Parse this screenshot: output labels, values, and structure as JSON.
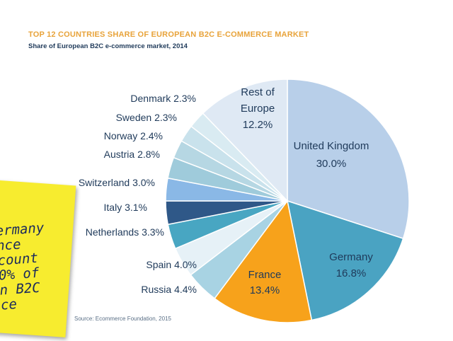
{
  "chart_data": {
    "type": "pie",
    "title": "TOP 12 COUNTRIES SHARE OF EUROPEAN B2C E-COMMERCE MARKET",
    "subtitle": "Share of European B2C e-commerce market, 2014",
    "source": "Source: Ecommerce Foundation, 2015",
    "slices": [
      {
        "label": "United Kingdom",
        "value": 30.0,
        "display": "30.0%",
        "color": "#b8cfe9"
      },
      {
        "label": "Germany",
        "value": 16.8,
        "display": "16.8%",
        "color": "#4aa3c2"
      },
      {
        "label": "France",
        "value": 13.4,
        "display": "13.4%",
        "color": "#f7a21b"
      },
      {
        "label": "Russia",
        "value": 4.4,
        "display": "4.4%",
        "color": "#a8d3e3"
      },
      {
        "label": "Spain",
        "value": 4.0,
        "display": "4.0%",
        "color": "#e6f1f7"
      },
      {
        "label": "Netherlands",
        "value": 3.3,
        "display": "3.3%",
        "color": "#48a6c2"
      },
      {
        "label": "Italy",
        "value": 3.1,
        "display": "3.1%",
        "color": "#2f5888"
      },
      {
        "label": "Switzerland",
        "value": 3.0,
        "display": "3.0%",
        "color": "#8ab8e6"
      },
      {
        "label": "Austria",
        "value": 2.8,
        "display": "2.8%",
        "color": "#9fcbdb"
      },
      {
        "label": "Norway",
        "value": 2.4,
        "display": "2.4%",
        "color": "#b6d7e3"
      },
      {
        "label": "Sweden",
        "value": 2.3,
        "display": "2.3%",
        "color": "#c9e2ec"
      },
      {
        "label": "Denmark",
        "value": 2.3,
        "display": "2.3%",
        "color": "#d9ebf2"
      },
      {
        "label": "Rest of Europe",
        "value": 12.2,
        "display": "12.2%",
        "color": "#dfe9f4"
      }
    ]
  },
  "note_text": "ermany\nnce\ncount\n0% of\nn B2C\nce"
}
